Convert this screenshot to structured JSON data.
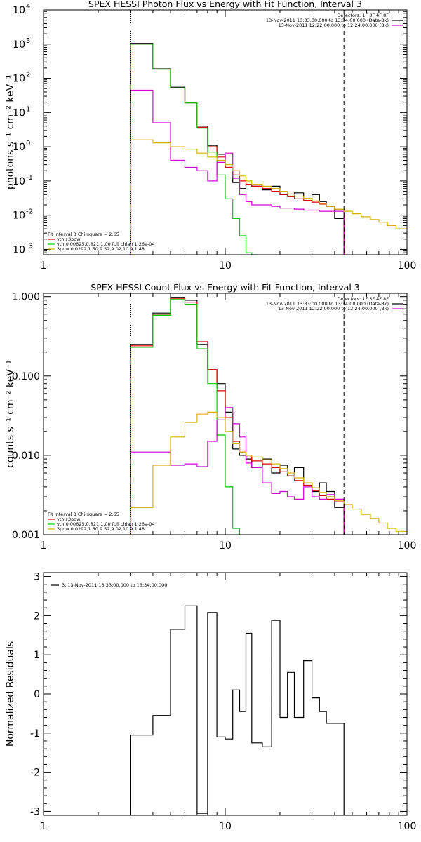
{
  "chart_data": [
    {
      "type": "line",
      "title": "SPEX HESSI Photon Flux vs Energy with Fit Function, Interval 3",
      "xlabel": "",
      "ylabel": "photons s⁻¹ cm⁻² keV⁻¹",
      "xscale": "log",
      "yscale": "log",
      "xlim": [
        1,
        100
      ],
      "ylim": [
        0.0007,
        10000
      ],
      "xticks": [
        {
          "v": 1,
          "label": "1"
        },
        {
          "v": 10,
          "label": "10"
        },
        {
          "v": 100,
          "label": "100"
        }
      ],
      "yticks": [
        {
          "v": 0.001,
          "b": "10",
          "e": "-3"
        },
        {
          "v": 0.01,
          "b": "10",
          "e": "-2"
        },
        {
          "v": 0.1,
          "b": "10",
          "e": "-1"
        },
        {
          "v": 1,
          "b": "10",
          "e": "0"
        },
        {
          "v": 10,
          "b": "10",
          "e": "1"
        },
        {
          "v": 100,
          "b": "10",
          "e": "2"
        },
        {
          "v": 1000,
          "b": "10",
          "e": "3"
        },
        {
          "v": 10000,
          "b": "10",
          "e": "4"
        }
      ],
      "vlines": [
        {
          "x": 3.0,
          "style": "dotted"
        },
        {
          "x": 45.0,
          "style": "dashed"
        }
      ],
      "legend_topright": [
        {
          "text": "Detectors: 1F 3F 4F 8F",
          "color": ""
        },
        {
          "text": "13-Nov-2011 13:33:00.000 to 13:34:00.000 (Data-Bk)",
          "color": "#000000"
        },
        {
          "text": "13-Nov-2011 12:22:00.000 to 12:24:00.000 (Bk)",
          "color": "#d400d4"
        }
      ],
      "legend_bottomleft": [
        {
          "text": "Fit Interval 3   Chi-square = 2.65",
          "color": ""
        },
        {
          "text": "vth+3pow",
          "color": "#dd0000"
        },
        {
          "text": "vth 0.00625,0.821,1.00   full chian 1.26e-04",
          "color": "#00cc00"
        },
        {
          "text": "3pow 0.0292,1.50,9.52,9.02,10.9,1.48",
          "color": "#d4b400"
        }
      ],
      "series": [
        {
          "color": "#000000",
          "edges": [
            3,
            4,
            5,
            6,
            7,
            8,
            9,
            10,
            11,
            12,
            13,
            14,
            16,
            18,
            20,
            22,
            24,
            27,
            30,
            33,
            36,
            40,
            45
          ],
          "values": [
            1050,
            190,
            55,
            20,
            4.0,
            1.1,
            0.6,
            0.25,
            0.09,
            0.06,
            0.08,
            0.07,
            0.055,
            0.07,
            0.04,
            0.035,
            0.045,
            0.03,
            0.04,
            0.025,
            0.018,
            0.008
          ]
        },
        {
          "color": "#dd0000",
          "edges": [
            3,
            4,
            5,
            6,
            7,
            8,
            9,
            10,
            11,
            12,
            13,
            14,
            16,
            18,
            20,
            22,
            24,
            27,
            30,
            33,
            36,
            40,
            45
          ],
          "values": [
            1000,
            185,
            52,
            19,
            3.7,
            1.0,
            0.5,
            0.25,
            0.15,
            0.1,
            0.08,
            0.07,
            0.06,
            0.05,
            0.04,
            0.035,
            0.03,
            0.027,
            0.024,
            0.021,
            0.018,
            0.015
          ]
        },
        {
          "color": "#00cc00",
          "edges": [
            3,
            4,
            5,
            6,
            7,
            8,
            9,
            10,
            11,
            12,
            13,
            14,
            15
          ],
          "values": [
            1000,
            185,
            52,
            19,
            3.5,
            0.7,
            0.15,
            0.03,
            0.008,
            0.0025,
            0.0008,
            0.0002
          ]
        },
        {
          "color": "#d400d4",
          "edges": [
            3,
            4,
            5,
            6,
            7,
            8,
            9,
            10,
            11,
            12,
            13,
            14,
            16,
            18,
            20,
            22,
            24,
            27,
            30,
            33,
            36,
            40,
            45
          ],
          "values": [
            45,
            5.0,
            0.4,
            0.25,
            0.2,
            0.1,
            0.35,
            0.65,
            0.12,
            0.04,
            0.025,
            0.02,
            0.02,
            0.018,
            0.016,
            0.016,
            0.015,
            0.014,
            0.014,
            0.013,
            0.013,
            0.013
          ]
        },
        {
          "color": "#d4b400",
          "edges": [
            3,
            4,
            5,
            6,
            7,
            8,
            9,
            10,
            11,
            12,
            13,
            14,
            16,
            18,
            20,
            22,
            24,
            27,
            30,
            33,
            36,
            40,
            45,
            50,
            56,
            63,
            70,
            78,
            87,
            100
          ],
          "values": [
            1.6,
            1.3,
            1.0,
            0.85,
            0.65,
            0.5,
            0.4,
            0.3,
            0.2,
            0.14,
            0.1,
            0.08,
            0.07,
            0.06,
            0.05,
            0.042,
            0.036,
            0.031,
            0.026,
            0.022,
            0.018,
            0.015,
            0.013,
            0.011,
            0.009,
            0.0075,
            0.0062,
            0.005,
            0.004
          ]
        }
      ]
    },
    {
      "type": "line",
      "title": "SPEX HESSI Count Flux vs Energy with Fit Function, Interval 3",
      "xlabel": "",
      "ylabel": "counts s⁻¹ cm⁻² keV⁻¹",
      "xscale": "log",
      "yscale": "log",
      "xlim": [
        1,
        100
      ],
      "ylim": [
        0.001,
        1.1
      ],
      "xticks": [
        {
          "v": 1,
          "label": "1"
        },
        {
          "v": 10,
          "label": "10"
        },
        {
          "v": 100,
          "label": "100"
        }
      ],
      "yticks": [
        {
          "v": 0.001,
          "label": "0.001"
        },
        {
          "v": 0.01,
          "label": "0.010"
        },
        {
          "v": 0.1,
          "label": "0.100"
        },
        {
          "v": 1,
          "label": "1.000"
        }
      ],
      "vlines": [
        {
          "x": 3.0,
          "style": "dotted"
        },
        {
          "x": 45.0,
          "style": "dashed"
        }
      ],
      "legend_topright": [
        {
          "text": "Detectors: 1F 3F 4F 8F",
          "color": ""
        },
        {
          "text": "13-Nov-2011 13:33:00.000 to 13:34:00.000 (Data-Bk)",
          "color": "#000000"
        },
        {
          "text": "13-Nov-2011 12:22:00.000 to 12:24:00.000 (Bk)",
          "color": "#d400d4"
        }
      ],
      "legend_bottomleft": [
        {
          "text": "Fit Interval 3   Chi-square = 2.65",
          "color": ""
        },
        {
          "text": "vth+3pow",
          "color": "#dd0000"
        },
        {
          "text": "vth 0.00625,0.821,1.00   full chian 1.26e-04",
          "color": "#00cc00"
        },
        {
          "text": "3pow 0.0292,1.50,9.52,9.02,10.9,1.48",
          "color": "#d4b400"
        }
      ],
      "series": [
        {
          "color": "#000000",
          "edges": [
            3,
            4,
            5,
            6,
            7,
            8,
            9,
            10,
            11,
            12,
            13,
            14,
            16,
            18,
            20,
            22,
            24,
            27,
            30,
            33,
            36,
            40,
            45
          ],
          "values": [
            0.25,
            0.62,
            0.98,
            0.9,
            0.25,
            0.12,
            0.08,
            0.035,
            0.012,
            0.01,
            0.009,
            0.007,
            0.009,
            0.006,
            0.0075,
            0.0055,
            0.007,
            0.0045,
            0.0035,
            0.0045,
            0.0035,
            0.0022
          ]
        },
        {
          "color": "#dd0000",
          "edges": [
            3,
            4,
            5,
            6,
            7,
            8,
            9,
            10,
            11,
            12,
            13,
            14,
            16,
            18,
            20,
            22,
            24,
            27,
            30,
            33,
            36,
            40,
            45
          ],
          "values": [
            0.24,
            0.6,
            0.95,
            0.85,
            0.27,
            0.12,
            0.065,
            0.03,
            0.015,
            0.011,
            0.0095,
            0.0085,
            0.0078,
            0.007,
            0.0062,
            0.0055,
            0.0048,
            0.0042,
            0.0036,
            0.0031,
            0.0028,
            0.0026
          ]
        },
        {
          "color": "#00cc00",
          "edges": [
            3,
            4,
            5,
            6,
            7,
            8,
            9,
            10,
            11,
            12
          ],
          "values": [
            0.23,
            0.58,
            0.92,
            0.8,
            0.22,
            0.08,
            0.018,
            0.004,
            0.0012
          ]
        },
        {
          "color": "#d400d4",
          "edges": [
            3,
            4,
            5,
            6,
            7,
            8,
            9,
            10,
            11,
            12,
            13,
            14,
            16,
            18,
            20,
            22,
            24,
            27,
            30,
            33,
            36,
            40,
            45
          ],
          "values": [
            0.011,
            0.011,
            0.0075,
            0.0078,
            0.0072,
            0.015,
            0.028,
            0.04,
            0.025,
            0.017,
            0.008,
            0.007,
            0.0045,
            0.0033,
            0.0035,
            0.003,
            0.0028,
            0.004,
            0.003,
            0.0028,
            0.0032,
            0.0028
          ]
        },
        {
          "color": "#d4b400",
          "edges": [
            3,
            4,
            5,
            6,
            7,
            8,
            9,
            10,
            11,
            12,
            13,
            14,
            16,
            18,
            20,
            22,
            24,
            27,
            30,
            33,
            36,
            40,
            45,
            50,
            56,
            63,
            70,
            78,
            87,
            100
          ],
          "values": [
            0.0022,
            0.0075,
            0.017,
            0.026,
            0.033,
            0.035,
            0.03,
            0.02,
            0.014,
            0.011,
            0.01,
            0.0095,
            0.0088,
            0.0078,
            0.0068,
            0.006,
            0.0052,
            0.0045,
            0.0039,
            0.0034,
            0.003,
            0.0027,
            0.0024,
            0.0021,
            0.0018,
            0.0016,
            0.0014,
            0.0012,
            0.0011
          ]
        }
      ]
    },
    {
      "type": "line",
      "title": "",
      "xlabel": "",
      "ylabel": "Normalized Residuals",
      "xscale": "log",
      "yscale": "linear",
      "xlim": [
        1,
        100
      ],
      "ylim": [
        -3.1,
        3.1
      ],
      "xticks": [
        {
          "v": 1,
          "label": "1"
        },
        {
          "v": 10,
          "label": "10"
        },
        {
          "v": 100,
          "label": "100"
        }
      ],
      "yticks": [
        {
          "v": -3,
          "label": "-3"
        },
        {
          "v": -2,
          "label": "-2"
        },
        {
          "v": -1,
          "label": "-1"
        },
        {
          "v": 0,
          "label": "0"
        },
        {
          "v": 1,
          "label": "1"
        },
        {
          "v": 2,
          "label": "2"
        },
        {
          "v": 3,
          "label": "3"
        }
      ],
      "vlines": [],
      "legend_topleft": [
        {
          "text": "3, 13-Nov-2011 13:33:00.000 to 13:34:00.000",
          "color": "#000000"
        }
      ],
      "series": [
        {
          "color": "#000000",
          "edges": [
            3,
            4,
            5,
            6,
            7,
            8,
            9,
            10,
            11,
            12,
            13,
            14,
            16,
            18,
            20,
            22,
            24,
            27,
            30,
            33,
            36,
            40,
            45
          ],
          "values": [
            -1.05,
            -0.55,
            1.65,
            2.25,
            -3.05,
            2.08,
            -1.1,
            -1.15,
            0.1,
            -0.45,
            1.55,
            -1.25,
            -1.35,
            1.88,
            -0.6,
            0.55,
            -0.6,
            0.85,
            -0.1,
            -0.45,
            -0.75,
            -0.75
          ]
        }
      ]
    }
  ]
}
